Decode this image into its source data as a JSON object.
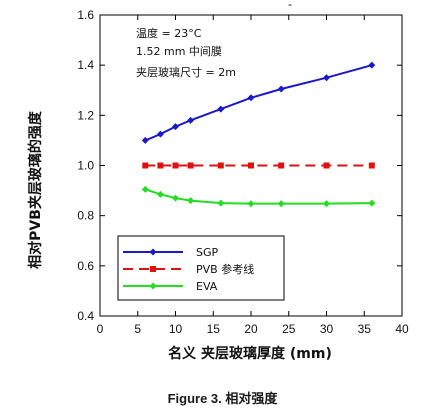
{
  "chart_data": {
    "type": "line",
    "title": "",
    "xlabel": "名义 夹层玻璃厚度 (mm)",
    "ylabel": "相对PVB夹层玻璃的强度",
    "xlim": [
      0,
      40
    ],
    "ylim": [
      0.4,
      1.6
    ],
    "xticks": [
      "0",
      "5",
      "10",
      "15",
      "20",
      "25",
      "30",
      "35",
      "40"
    ],
    "yticks": [
      "0.4",
      "0.6",
      "0.8",
      "1.0",
      "1.2",
      "1.4",
      "1.6"
    ],
    "annotations": [
      "温度 = 23°C",
      "1.52 mm 中间膜",
      "夹层玻璃尺寸 = 2m"
    ],
    "legend_position": "lower-left",
    "grid": false,
    "series": [
      {
        "name": "SGP",
        "color": "#1a1acc",
        "line_style": "solid",
        "marker": "diamond",
        "x": [
          6,
          8,
          10,
          12,
          16,
          20,
          24,
          30,
          36
        ],
        "y": [
          1.1,
          1.125,
          1.155,
          1.18,
          1.225,
          1.27,
          1.305,
          1.35,
          1.4
        ]
      },
      {
        "name": "PVB 参考线",
        "color": "#e01010",
        "line_style": "dashed",
        "marker": "square",
        "x": [
          6,
          8,
          10,
          12,
          16,
          20,
          24,
          30,
          36
        ],
        "y": [
          1.0,
          1.0,
          1.0,
          1.0,
          1.0,
          1.0,
          1.0,
          1.0,
          1.0
        ]
      },
      {
        "name": "EVA",
        "color": "#22dd22",
        "line_style": "solid",
        "marker": "diamond",
        "x": [
          6,
          8,
          10,
          12,
          16,
          20,
          24,
          30,
          36
        ],
        "y": [
          0.905,
          0.885,
          0.87,
          0.86,
          0.85,
          0.848,
          0.848,
          0.848,
          0.85
        ]
      }
    ]
  },
  "top_mark": "-",
  "caption": {
    "label": "Figure 3.",
    "text": "相对强度"
  }
}
